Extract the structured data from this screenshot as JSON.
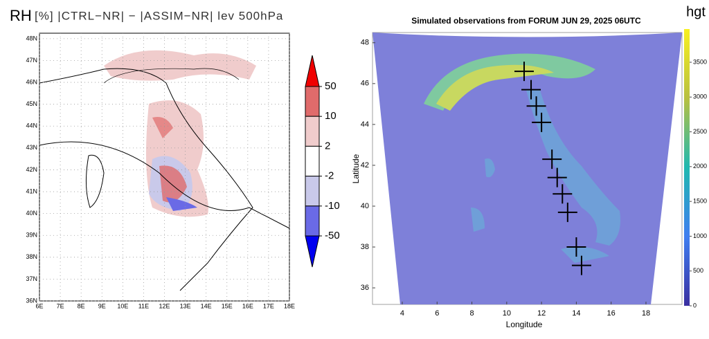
{
  "left_map": {
    "title": "RH",
    "subtitle": "[%] |CTRL−NR| − |ASSIM−NR| lev 500hPa",
    "xlim": [
      6,
      18
    ],
    "ylim": [
      36,
      48.25
    ],
    "xticks": [
      {
        "value": 6,
        "label": "6E"
      },
      {
        "value": 7,
        "label": "7E"
      },
      {
        "value": 8,
        "label": "8E"
      },
      {
        "value": 9,
        "label": "9E"
      },
      {
        "value": 10,
        "label": "10E"
      },
      {
        "value": 11,
        "label": "11E"
      },
      {
        "value": 12,
        "label": "12E"
      },
      {
        "value": 13,
        "label": "13E"
      },
      {
        "value": 14,
        "label": "14E"
      },
      {
        "value": 15,
        "label": "15E"
      },
      {
        "value": 16,
        "label": "16E"
      },
      {
        "value": 17,
        "label": "17E"
      },
      {
        "value": 18,
        "label": "18E"
      }
    ],
    "yticks": [
      {
        "value": 36,
        "label": "36N"
      },
      {
        "value": 37,
        "label": "37N"
      },
      {
        "value": 38,
        "label": "38N"
      },
      {
        "value": 39,
        "label": "39N"
      },
      {
        "value": 40,
        "label": "40N"
      },
      {
        "value": 41,
        "label": "41N"
      },
      {
        "value": 42,
        "label": "42N"
      },
      {
        "value": 43,
        "label": "43N"
      },
      {
        "value": 44,
        "label": "44N"
      },
      {
        "value": 45,
        "label": "45N"
      },
      {
        "value": 46,
        "label": "46N"
      },
      {
        "value": 47,
        "label": "47N"
      },
      {
        "value": 48,
        "label": "48N"
      }
    ],
    "colorbar": {
      "ticks": [
        50,
        10,
        2,
        -2,
        -10,
        -50
      ],
      "colors": [
        "#f00000",
        "#e06b6b",
        "#f0cccc",
        "#ffffff",
        "#c9c9ea",
        "#6a6ae6",
        "#0000f0"
      ]
    }
  },
  "right_map": {
    "title": "Simulated observations from FORUM JUN 29, 2025 06UTC",
    "xlabel": "Longitude",
    "ylabel": "Latitude",
    "xlim": [
      2.29,
      20.07
    ],
    "ylim": [
      35.19,
      48.5
    ],
    "xticks": [
      4,
      6,
      8,
      10,
      12,
      14,
      16,
      18
    ],
    "yticks": [
      36,
      38,
      40,
      42,
      44,
      46,
      48
    ],
    "colorbar": {
      "label": "hgt",
      "lim": [
        0,
        3977
      ],
      "ticks": [
        0,
        500,
        1000,
        1500,
        2000,
        2500,
        3000,
        3500
      ]
    },
    "observations": {
      "lon": [
        11.0,
        11.4,
        11.7,
        12.0,
        12.6,
        12.9,
        13.2,
        13.5,
        14.0,
        14.3
      ],
      "lat": [
        46.6,
        45.7,
        44.9,
        44.1,
        42.3,
        41.4,
        40.6,
        39.7,
        38.0,
        37.1
      ]
    }
  }
}
